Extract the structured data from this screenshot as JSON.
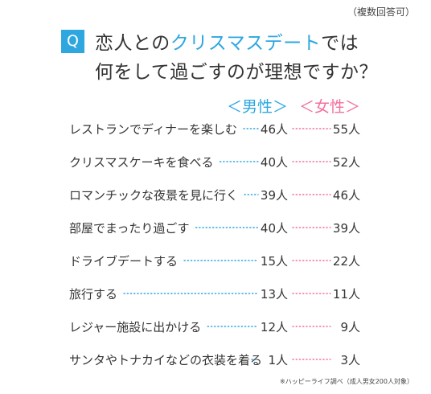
{
  "note": "（複数回答可）",
  "question": {
    "badge": "Q",
    "line1_pre": "恋人との",
    "line1_highlight": "クリスマスデート",
    "line1_post": "では",
    "line2": "何をして過ごすのが理想ですか？"
  },
  "footnote": "※ハッピーライフ調べ（成人男女200人対象）",
  "colors": {
    "male": "#2ea7e0",
    "female": "#f3709d",
    "text": "#333333"
  },
  "chart_data": {
    "type": "table",
    "title": "恋人とのクリスマスデートでは何をして過ごすのが理想ですか？",
    "legend": [
      "＜男性＞",
      "＜女性＞"
    ],
    "unit": "人",
    "categories": [
      "レストランでディナーを楽しむ",
      "クリスマスケーキを食べる",
      "ロマンチックな夜景を見に行く",
      "部屋でまったり過ごす",
      "ドライブデートする",
      "旅行する",
      "レジャー施設に出かける",
      "サンタやトナカイなどの衣装を着る"
    ],
    "series": [
      {
        "name": "男性",
        "values": [
          46,
          40,
          39,
          40,
          15,
          13,
          12,
          1
        ]
      },
      {
        "name": "女性",
        "values": [
          55,
          52,
          46,
          39,
          22,
          11,
          9,
          3
        ]
      }
    ]
  }
}
